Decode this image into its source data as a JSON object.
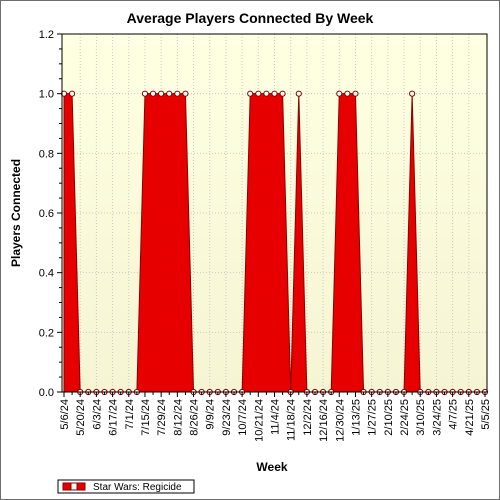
{
  "chart_data": {
    "type": "area",
    "title": "Average Players Connected By Week",
    "xlabel": "Week",
    "ylabel": "Players Connected",
    "ylim": [
      0,
      1.2
    ],
    "yticks": [
      "0.0",
      "0.2",
      "0.4",
      "0.6",
      "0.8",
      "1.0",
      "1.2"
    ],
    "grid": true,
    "legend_position": "bottom-left",
    "colors": {
      "plot_bg_top": "#ffffe2",
      "plot_bg_bottom": "#f5f5d4",
      "series_fill": "#e60000",
      "series_edge": "#8a0000",
      "marker_fill": "#ffffff",
      "grid": "#c9c9c9"
    },
    "x_tick_labels": [
      "5/6/24",
      "5/20/24",
      "6/3/24",
      "6/17/24",
      "7/1/24",
      "7/15/24",
      "7/29/24",
      "8/12/24",
      "8/26/24",
      "9/9/24",
      "9/23/24",
      "10/7/24",
      "10/21/24",
      "11/4/24",
      "11/18/24",
      "12/2/24",
      "12/16/24",
      "12/30/24",
      "1/13/25",
      "1/27/25",
      "2/10/25",
      "2/24/25",
      "3/10/25",
      "3/24/25",
      "4/7/25",
      "4/21/25",
      "5/5/25"
    ],
    "x": [
      "5/6/24",
      "5/13/24",
      "5/20/24",
      "5/27/24",
      "6/3/24",
      "6/10/24",
      "6/17/24",
      "6/24/24",
      "7/1/24",
      "7/8/24",
      "7/15/24",
      "7/22/24",
      "7/29/24",
      "8/5/24",
      "8/12/24",
      "8/19/24",
      "8/26/24",
      "9/2/24",
      "9/9/24",
      "9/16/24",
      "9/23/24",
      "9/30/24",
      "10/7/24",
      "10/14/24",
      "10/21/24",
      "10/28/24",
      "11/4/24",
      "11/11/24",
      "11/18/24",
      "11/25/24",
      "12/2/24",
      "12/9/24",
      "12/16/24",
      "12/23/24",
      "12/30/24",
      "1/6/25",
      "1/13/25",
      "1/20/25",
      "1/27/25",
      "2/3/25",
      "2/10/25",
      "2/17/25",
      "2/24/25",
      "3/3/25",
      "3/10/25",
      "3/17/25",
      "3/24/25",
      "3/31/25",
      "4/7/25",
      "4/14/25",
      "4/21/25",
      "4/28/25",
      "5/5/25"
    ],
    "series": [
      {
        "name": "Star Wars: Regicide",
        "values": [
          1,
          1,
          0,
          0,
          0,
          0,
          0,
          0,
          0,
          0,
          1,
          1,
          1,
          1,
          1,
          1,
          0,
          0,
          0,
          0,
          0,
          0,
          0,
          1,
          1,
          1,
          1,
          1,
          0,
          1,
          0,
          0,
          0,
          0,
          1,
          1,
          1,
          0,
          0,
          0,
          0,
          0,
          0,
          1,
          0,
          0,
          0,
          0,
          0,
          0,
          0,
          0,
          0
        ]
      }
    ]
  }
}
